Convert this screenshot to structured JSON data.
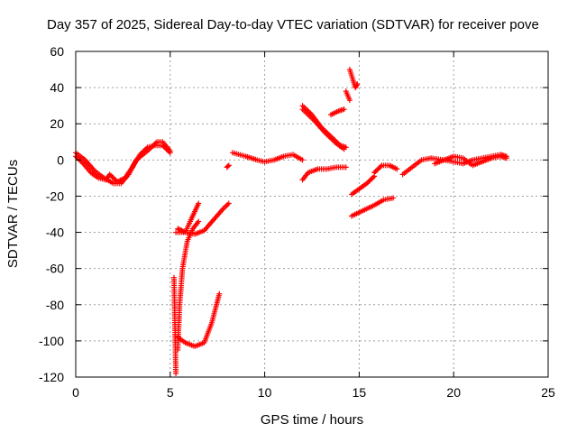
{
  "chart_data": {
    "type": "scatter",
    "title": "Day 357 of 2025, Sidereal Day-to-day VTEC variation (SDTVAR) for receiver pove",
    "xlabel": "GPS time / hours",
    "ylabel": "SDTVAR / TECUs",
    "xlim": [
      0,
      25
    ],
    "ylim": [
      -120,
      60
    ],
    "xticks": [
      "0",
      "5",
      "10",
      "15",
      "20",
      "25"
    ],
    "yticks": [
      "-120",
      "-100",
      "-80",
      "-60",
      "-40",
      "-20",
      "0",
      "20",
      "40",
      "60"
    ],
    "grid": true,
    "marker": "+",
    "color": "#ff0000",
    "segments": [
      {
        "points": [
          [
            0,
            4
          ],
          [
            0.5,
            0
          ],
          [
            1,
            -6
          ],
          [
            1.5,
            -10
          ],
          [
            2,
            -13
          ],
          [
            2.4,
            -13
          ],
          [
            2.8,
            -8
          ],
          [
            3.2,
            0
          ],
          [
            3.8,
            5
          ],
          [
            4.3,
            10
          ],
          [
            4.6,
            10
          ],
          [
            5,
            5
          ]
        ]
      },
      {
        "points": [
          [
            0,
            2
          ],
          [
            0.4,
            -2
          ],
          [
            0.8,
            -7
          ],
          [
            1.2,
            -10
          ],
          [
            1.6,
            -11
          ],
          [
            1.8,
            -8
          ],
          [
            2.2,
            -12
          ],
          [
            2.6,
            -10
          ],
          [
            3,
            -4
          ],
          [
            3.4,
            3
          ],
          [
            3.8,
            7
          ],
          [
            4.2,
            8
          ],
          [
            4.6,
            8
          ],
          [
            5,
            4
          ]
        ]
      },
      {
        "points": [
          [
            5.3,
            -40
          ],
          [
            5.8,
            -40
          ],
          [
            6.3,
            -41
          ],
          [
            6.8,
            -39
          ],
          [
            7.3,
            -33
          ],
          [
            7.8,
            -27
          ],
          [
            8.1,
            -24
          ]
        ]
      },
      {
        "points": [
          [
            5.4,
            -38
          ],
          [
            5.6,
            -39
          ],
          [
            5.8,
            -40
          ],
          [
            6.1,
            -33
          ],
          [
            6.5,
            -24
          ]
        ]
      },
      {
        "points": [
          [
            5.4,
            -105
          ],
          [
            5.5,
            -80
          ],
          [
            5.65,
            -60
          ],
          [
            5.9,
            -45
          ],
          [
            6.2,
            -38
          ],
          [
            6.5,
            -34
          ]
        ]
      },
      {
        "points": [
          [
            5.4,
            -98
          ],
          [
            5.8,
            -101
          ],
          [
            6.3,
            -103
          ],
          [
            6.8,
            -101
          ],
          [
            7.2,
            -90
          ],
          [
            7.6,
            -74
          ]
        ]
      },
      {
        "points": [
          [
            5.2,
            -65
          ],
          [
            5.3,
            -118
          ]
        ]
      },
      {
        "points": [
          [
            8,
            -4
          ],
          [
            8.1,
            -3
          ]
        ]
      },
      {
        "points": [
          [
            8.3,
            4
          ],
          [
            9,
            2
          ],
          [
            9.6,
            0
          ],
          [
            10,
            -1
          ],
          [
            10.5,
            0
          ],
          [
            11,
            2
          ],
          [
            11.5,
            3
          ],
          [
            12,
            0
          ]
        ]
      },
      {
        "points": [
          [
            12,
            -11
          ],
          [
            12.3,
            -7
          ],
          [
            12.8,
            -5
          ],
          [
            13.3,
            -5
          ],
          [
            13.8,
            -4
          ],
          [
            14.3,
            -4
          ]
        ]
      },
      {
        "points": [
          [
            12,
            30
          ],
          [
            12.5,
            25
          ],
          [
            13,
            18
          ],
          [
            13.5,
            13
          ],
          [
            14,
            8
          ],
          [
            14.3,
            7
          ]
        ]
      },
      {
        "points": [
          [
            12,
            28
          ],
          [
            12.6,
            22
          ],
          [
            13.2,
            15
          ],
          [
            13.8,
            9
          ],
          [
            14.2,
            6
          ]
        ]
      },
      {
        "points": [
          [
            13.5,
            25
          ],
          [
            13.9,
            27
          ],
          [
            14.2,
            28
          ]
        ]
      },
      {
        "points": [
          [
            14.5,
            50
          ],
          [
            14.65,
            45
          ],
          [
            14.8,
            40
          ],
          [
            14.9,
            42
          ]
        ]
      },
      {
        "points": [
          [
            14.3,
            38
          ],
          [
            14.5,
            33
          ]
        ]
      },
      {
        "points": [
          [
            14.6,
            -19
          ],
          [
            15,
            -16
          ],
          [
            15.4,
            -13
          ],
          [
            15.8,
            -9
          ]
        ]
      },
      {
        "points": [
          [
            14.6,
            -31
          ],
          [
            15.2,
            -28
          ],
          [
            15.8,
            -25
          ],
          [
            16.3,
            -22
          ],
          [
            16.8,
            -21
          ]
        ]
      },
      {
        "points": [
          [
            15.8,
            -7
          ],
          [
            16.2,
            -3
          ],
          [
            16.6,
            -3
          ],
          [
            17,
            -5
          ]
        ]
      },
      {
        "points": [
          [
            17.3,
            -8
          ],
          [
            17.8,
            -4
          ],
          [
            18.3,
            0
          ],
          [
            18.8,
            1
          ]
        ]
      },
      {
        "points": [
          [
            18.8,
            1
          ],
          [
            19.5,
            0
          ],
          [
            20,
            -1
          ],
          [
            20.5,
            -2
          ],
          [
            21,
            0
          ],
          [
            21.5,
            1
          ],
          [
            22,
            2
          ],
          [
            22.5,
            3
          ],
          [
            22.8,
            2
          ]
        ]
      },
      {
        "points": [
          [
            19,
            -2
          ],
          [
            19.5,
            0
          ],
          [
            20,
            2
          ],
          [
            20.5,
            1
          ],
          [
            21,
            -3
          ],
          [
            21.5,
            -1
          ],
          [
            22,
            1
          ],
          [
            22.5,
            2
          ],
          [
            22.8,
            1
          ]
        ]
      }
    ]
  }
}
